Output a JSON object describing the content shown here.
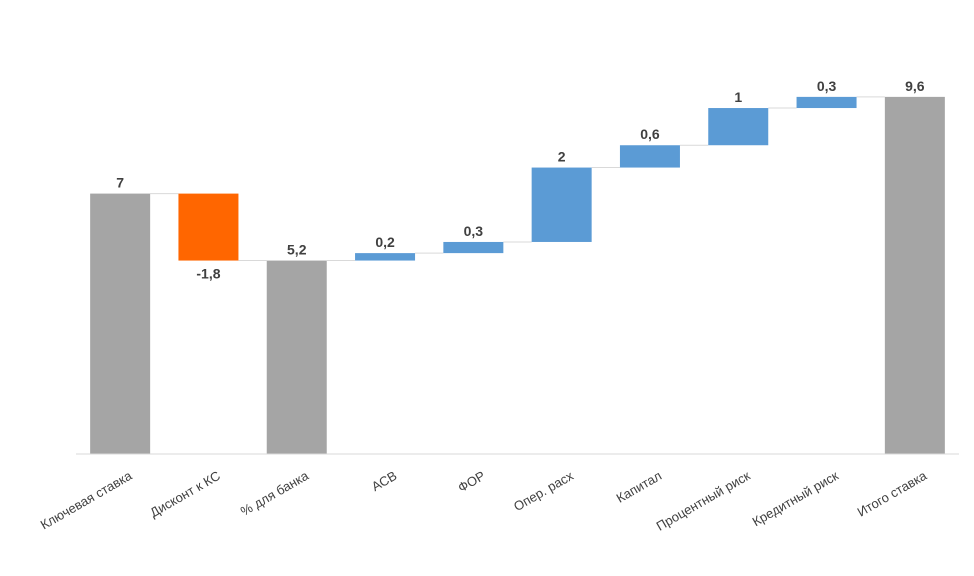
{
  "chart_data": {
    "type": "waterfall",
    "title": "",
    "xlabel": "",
    "ylabel": "",
    "ylim": [
      0,
      10
    ],
    "grid": false,
    "legend": "none",
    "categories": [
      "Ключевая ставка",
      "Дисконт к КС",
      "% для банка",
      "АСВ",
      "ФОР",
      "Опер. расх",
      "Капитал",
      "Процентный риск",
      "Кредитный риск",
      "Итого ставка"
    ],
    "values": [
      7,
      -1.8,
      5.2,
      0.2,
      0.3,
      2,
      0.6,
      1,
      0.3,
      9.6
    ],
    "value_labels": [
      "7",
      "-1,8",
      "5,2",
      "0,2",
      "0,3",
      "2",
      "0,6",
      "1",
      "0,3",
      "9,6"
    ],
    "kinds": [
      "total",
      "decrease",
      "total",
      "increase",
      "increase",
      "increase",
      "increase",
      "increase",
      "increase",
      "total"
    ],
    "colors": {
      "total": "#A5A5A5",
      "decrease": "#FF6600",
      "increase": "#5B9BD5",
      "connector": "#D9D9D9",
      "axis": "#D9D9D9"
    }
  }
}
